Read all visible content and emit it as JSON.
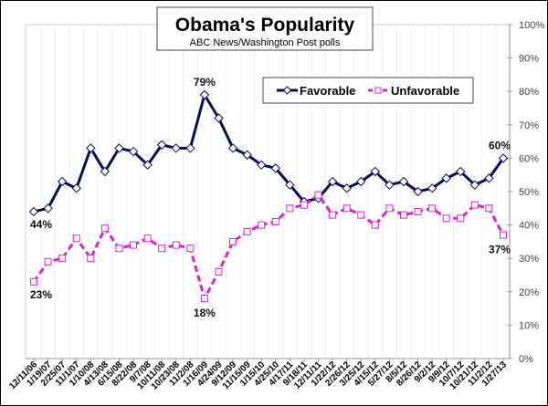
{
  "chart_data": {
    "type": "line",
    "title": "Obama's Popularity",
    "subtitle": "ABC News/Washington Post polls",
    "xlabel": "",
    "ylabel": "",
    "ylim": [
      0,
      100
    ],
    "y_ticks": [
      "0%",
      "10%",
      "20%",
      "30%",
      "40%",
      "50%",
      "60%",
      "70%",
      "80%",
      "90%",
      "100%"
    ],
    "y_axis_side": "right",
    "grid": "vertical light gridlines",
    "legend_position": "top-right",
    "categories": [
      "12/11/06",
      "1/19/07",
      "2/25/07",
      "11/1/07",
      "1/10/08",
      "4/13/08",
      "6/15/08",
      "8/22/08",
      "9/7/08",
      "10/11/08",
      "10/23/08",
      "11/2/08",
      "1/16/09",
      "4/24/09",
      "9/12/09",
      "11/15/09",
      "1/15/10",
      "4/25/10",
      "4/17/11",
      "9/18/11",
      "12/11/11",
      "1/22/12",
      "2/26/12",
      "3/25/12",
      "4/15/12",
      "5/27/12",
      "8/5/12",
      "8/26/12",
      "9/2/12",
      "9/9/12",
      "10/7/12",
      "10/21/12",
      "11/2/12",
      "1/27/13"
    ],
    "series": [
      {
        "name": "Favorable",
        "color": "#0a0a5e",
        "marker": "diamond",
        "line": "solid",
        "values": [
          44,
          45,
          53,
          51,
          63,
          56,
          63,
          62,
          58,
          64,
          63,
          63,
          79,
          72,
          63,
          61,
          58,
          57,
          52,
          47,
          48,
          53,
          51,
          53,
          56,
          52,
          53,
          50,
          51,
          54,
          56,
          52,
          54,
          60
        ]
      },
      {
        "name": "Unfavorable",
        "color": "#e020d0",
        "marker": "square",
        "line": "dashed",
        "values": [
          23,
          29,
          30,
          36,
          30,
          39,
          33,
          34,
          36,
          33,
          34,
          33,
          18,
          26,
          35,
          38,
          40,
          41,
          45,
          46,
          49,
          43,
          45,
          43,
          40,
          45,
          43,
          44,
          45,
          42,
          42,
          46,
          45,
          37
        ]
      }
    ],
    "annotations": [
      {
        "series": 0,
        "index": 0,
        "text": "44%"
      },
      {
        "series": 0,
        "index": 12,
        "text": "79%"
      },
      {
        "series": 0,
        "index": 33,
        "text": "60%"
      },
      {
        "series": 1,
        "index": 0,
        "text": "23%"
      },
      {
        "series": 1,
        "index": 12,
        "text": "18%"
      },
      {
        "series": 1,
        "index": 33,
        "text": "37%"
      }
    ]
  }
}
